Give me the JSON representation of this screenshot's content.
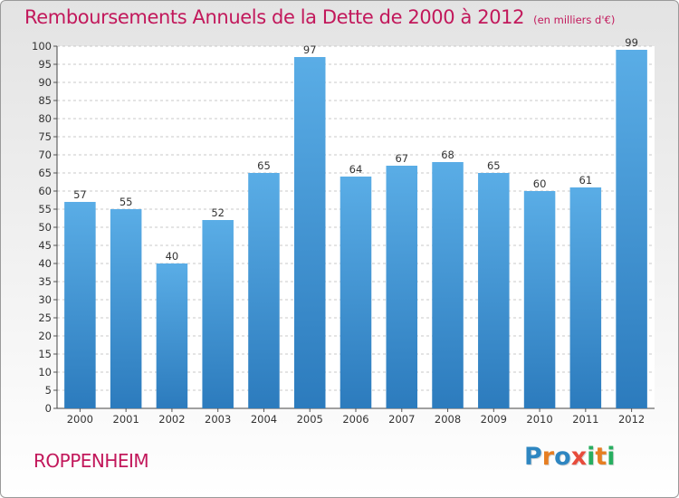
{
  "header": {
    "title": "Remboursements Annuels de la Dette de 2000 à 2012",
    "subtitle": "(en milliers d'€)"
  },
  "footer": {
    "commune": "ROPPENHEIM",
    "logo_text": "Proxiti"
  },
  "colors": {
    "accent": "#c2185b",
    "bar_light": "#5aade6",
    "bar_dark": "#2c7bbd",
    "logo": [
      "#2e86c1",
      "#e67e22",
      "#2e86c1",
      "#e74c3c",
      "#27ae60",
      "#e67e22",
      "#27ae60"
    ]
  },
  "chart_data": {
    "type": "bar",
    "title": "Remboursements Annuels de la Dette de 2000 à 2012",
    "subtitle": "(en milliers d'€)",
    "categories": [
      "2000",
      "2001",
      "2002",
      "2003",
      "2004",
      "2005",
      "2006",
      "2007",
      "2008",
      "2009",
      "2010",
      "2011",
      "2012"
    ],
    "values": [
      57,
      55,
      40,
      52,
      65,
      97,
      64,
      67,
      68,
      65,
      60,
      61,
      99
    ],
    "ylim": [
      0,
      100
    ],
    "yticks": [
      0,
      5,
      10,
      15,
      20,
      25,
      30,
      35,
      40,
      45,
      50,
      55,
      60,
      65,
      70,
      75,
      80,
      85,
      90,
      95,
      100
    ],
    "grid": true,
    "data_labels": true
  }
}
